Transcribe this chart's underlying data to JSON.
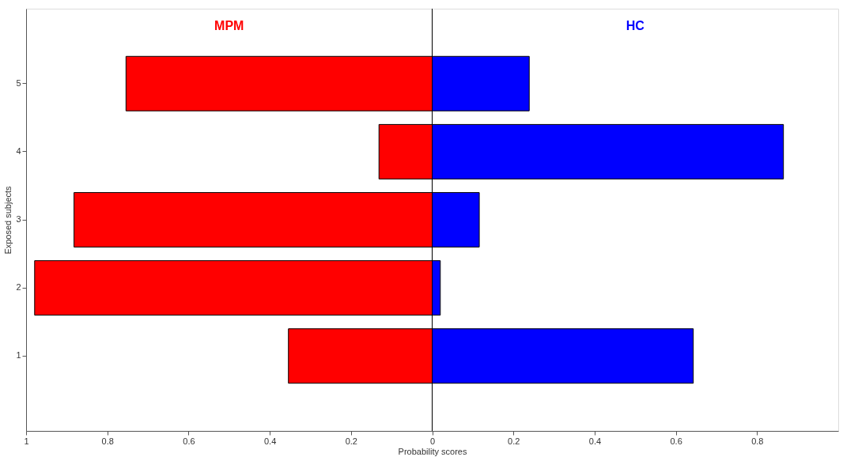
{
  "chart_data": {
    "type": "bar",
    "orientation": "horizontal",
    "stacked": true,
    "xlabel": "Probability scores",
    "ylabel": "Exposed subjects",
    "categories": [
      "5",
      "4",
      "3",
      "2",
      "1"
    ],
    "series": [
      {
        "name": "MPM",
        "color": "#ff0000",
        "values": [
          -0.754,
          -0.131,
          -0.882,
          -0.979,
          -0.354
        ]
      },
      {
        "name": "HC",
        "color": "#0000ff",
        "values": [
          0.239,
          0.865,
          0.116,
          0.02,
          0.643
        ]
      }
    ],
    "xlim": [
      -1,
      1
    ],
    "xticks": [
      {
        "value": -1,
        "label": "1"
      },
      {
        "value": -0.8,
        "label": "0.8"
      },
      {
        "value": -0.6,
        "label": "0.6"
      },
      {
        "value": -0.4,
        "label": "0.4"
      },
      {
        "value": -0.2,
        "label": "0.2"
      },
      0,
      0.2,
      0.4,
      0.6,
      0.8
    ],
    "ref_lines": [
      {
        "axis": "x",
        "value": 0,
        "color": "#000000"
      }
    ],
    "grid": false,
    "legend": false
  }
}
